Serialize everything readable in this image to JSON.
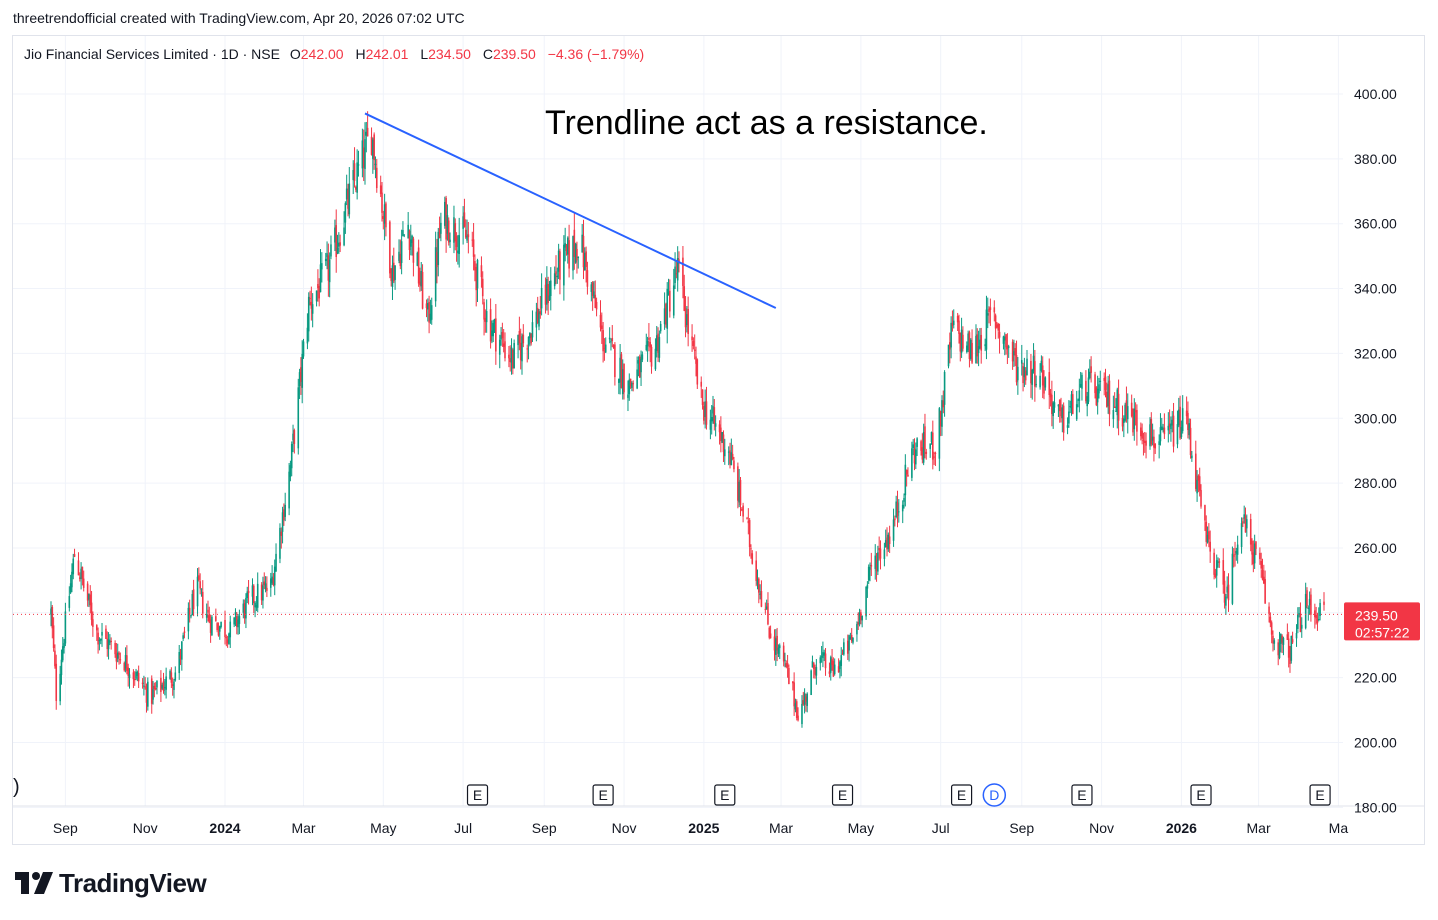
{
  "caption": "threetrendofficial created with TradingView.com, Apr 20, 2026 07:02 UTC",
  "legend": {
    "symbol": "Jio Financial Services Limited · 1D · NSE",
    "open_label": "O",
    "open": "242.00",
    "high_label": "H",
    "high": "242.01",
    "low_label": "L",
    "low": "234.50",
    "close_label": "C",
    "close": "239.50",
    "change": "−4.36 (−1.79%)"
  },
  "annotation": "Trendline act as a resistance.",
  "left_marker": ")",
  "brand": {
    "name": "TradingView",
    "icon": "tradingview-logo-icon"
  },
  "colors": {
    "up": "#089981",
    "down": "#f23645",
    "trendline": "#2962ff",
    "grid": "#f0f3fa",
    "text": "#131722",
    "price_tag": "#f23645"
  },
  "chart_data": {
    "type": "candlestick",
    "y_axis": {
      "min": 180,
      "max": 405,
      "ticks": [
        "400.00",
        "380.00",
        "360.00",
        "340.00",
        "320.00",
        "300.00",
        "280.00",
        "260.00",
        "240.00",
        "220.00",
        "200.00",
        "180.00"
      ],
      "tick_values": [
        400,
        380,
        360,
        340,
        320,
        300,
        280,
        260,
        240,
        220,
        200,
        180
      ]
    },
    "x_axis": {
      "start": "2023-08-21",
      "end": "2026-04-20",
      "ticks": [
        {
          "date": "2023-09-01",
          "label": "Sep",
          "bold": false
        },
        {
          "date": "2023-11-01",
          "label": "Nov",
          "bold": false
        },
        {
          "date": "2024-01-01",
          "label": "2024",
          "bold": true
        },
        {
          "date": "2024-03-01",
          "label": "Mar",
          "bold": false
        },
        {
          "date": "2024-05-01",
          "label": "May",
          "bold": false
        },
        {
          "date": "2024-07-01",
          "label": "Jul",
          "bold": false
        },
        {
          "date": "2024-09-01",
          "label": "Sep",
          "bold": false
        },
        {
          "date": "2024-11-01",
          "label": "Nov",
          "bold": false
        },
        {
          "date": "2025-01-01",
          "label": "2025",
          "bold": true
        },
        {
          "date": "2025-03-01",
          "label": "Mar",
          "bold": false
        },
        {
          "date": "2025-05-01",
          "label": "May",
          "bold": false
        },
        {
          "date": "2025-07-01",
          "label": "Jul",
          "bold": false
        },
        {
          "date": "2025-09-01",
          "label": "Sep",
          "bold": false
        },
        {
          "date": "2025-11-01",
          "label": "Nov",
          "bold": false
        },
        {
          "date": "2026-01-01",
          "label": "2026",
          "bold": true
        },
        {
          "date": "2026-03-01",
          "label": "Mar",
          "bold": false
        },
        {
          "date": "2026-05-01",
          "label": "Ma",
          "bold": false
        }
      ]
    },
    "close_path": [
      {
        "date": "2023-08-21",
        "close": 240
      },
      {
        "date": "2023-08-25",
        "close": 215
      },
      {
        "date": "2023-09-08",
        "close": 258
      },
      {
        "date": "2023-09-25",
        "close": 234
      },
      {
        "date": "2023-10-15",
        "close": 226
      },
      {
        "date": "2023-11-05",
        "close": 214
      },
      {
        "date": "2023-11-25",
        "close": 222
      },
      {
        "date": "2023-12-10",
        "close": 248
      },
      {
        "date": "2023-12-20",
        "close": 238
      },
      {
        "date": "2024-01-05",
        "close": 234
      },
      {
        "date": "2024-01-20",
        "close": 244
      },
      {
        "date": "2024-02-05",
        "close": 248
      },
      {
        "date": "2024-02-20",
        "close": 285
      },
      {
        "date": "2024-03-05",
        "close": 335
      },
      {
        "date": "2024-03-20",
        "close": 346
      },
      {
        "date": "2024-04-05",
        "close": 368
      },
      {
        "date": "2024-04-22",
        "close": 388
      },
      {
        "date": "2024-05-08",
        "close": 345
      },
      {
        "date": "2024-05-20",
        "close": 360
      },
      {
        "date": "2024-06-04",
        "close": 330
      },
      {
        "date": "2024-06-15",
        "close": 362
      },
      {
        "date": "2024-07-05",
        "close": 355
      },
      {
        "date": "2024-07-20",
        "close": 330
      },
      {
        "date": "2024-08-08",
        "close": 318
      },
      {
        "date": "2024-08-25",
        "close": 330
      },
      {
        "date": "2024-09-10",
        "close": 345
      },
      {
        "date": "2024-09-28",
        "close": 355
      },
      {
        "date": "2024-10-15",
        "close": 325
      },
      {
        "date": "2024-11-05",
        "close": 310
      },
      {
        "date": "2024-11-25",
        "close": 322
      },
      {
        "date": "2024-12-12",
        "close": 346
      },
      {
        "date": "2024-12-30",
        "close": 305
      },
      {
        "date": "2025-01-20",
        "close": 290
      },
      {
        "date": "2025-02-05",
        "close": 262
      },
      {
        "date": "2025-02-20",
        "close": 235
      },
      {
        "date": "2025-03-05",
        "close": 222
      },
      {
        "date": "2025-03-15",
        "close": 208
      },
      {
        "date": "2025-03-28",
        "close": 226
      },
      {
        "date": "2025-04-10",
        "close": 222
      },
      {
        "date": "2025-04-25",
        "close": 232
      },
      {
        "date": "2025-05-10",
        "close": 255
      },
      {
        "date": "2025-05-25",
        "close": 266
      },
      {
        "date": "2025-06-10",
        "close": 290
      },
      {
        "date": "2025-06-28",
        "close": 292
      },
      {
        "date": "2025-07-10",
        "close": 328
      },
      {
        "date": "2025-07-25",
        "close": 320
      },
      {
        "date": "2025-08-10",
        "close": 332
      },
      {
        "date": "2025-08-28",
        "close": 316
      },
      {
        "date": "2025-09-15",
        "close": 315
      },
      {
        "date": "2025-10-01",
        "close": 298
      },
      {
        "date": "2025-10-20",
        "close": 310
      },
      {
        "date": "2025-11-10",
        "close": 305
      },
      {
        "date": "2025-11-25",
        "close": 300
      },
      {
        "date": "2025-12-15",
        "close": 292
      },
      {
        "date": "2026-01-05",
        "close": 300
      },
      {
        "date": "2026-01-20",
        "close": 262
      },
      {
        "date": "2026-02-05",
        "close": 245
      },
      {
        "date": "2026-02-15",
        "close": 270
      },
      {
        "date": "2026-03-01",
        "close": 255
      },
      {
        "date": "2026-03-12",
        "close": 232
      },
      {
        "date": "2026-03-25",
        "close": 228
      },
      {
        "date": "2026-04-05",
        "close": 242
      },
      {
        "date": "2026-04-20",
        "close": 239.5
      }
    ],
    "trendline": {
      "from": {
        "date": "2024-04-17",
        "price": 394
      },
      "to": {
        "date": "2025-02-25",
        "price": 334
      }
    },
    "last_price": {
      "value": 239.5,
      "label": "239.50",
      "countdown": "02:57:22"
    },
    "event_markers": [
      {
        "date": "2024-07-12",
        "label": "E"
      },
      {
        "date": "2024-10-16",
        "label": "E"
      },
      {
        "date": "2025-01-17",
        "label": "E"
      },
      {
        "date": "2025-04-17",
        "label": "E"
      },
      {
        "date": "2025-07-17",
        "label": "E"
      },
      {
        "date": "2025-08-11",
        "label": "D"
      },
      {
        "date": "2025-10-17",
        "label": "E"
      },
      {
        "date": "2026-01-16",
        "label": "E"
      },
      {
        "date": "2026-04-17",
        "label": "E"
      }
    ]
  }
}
